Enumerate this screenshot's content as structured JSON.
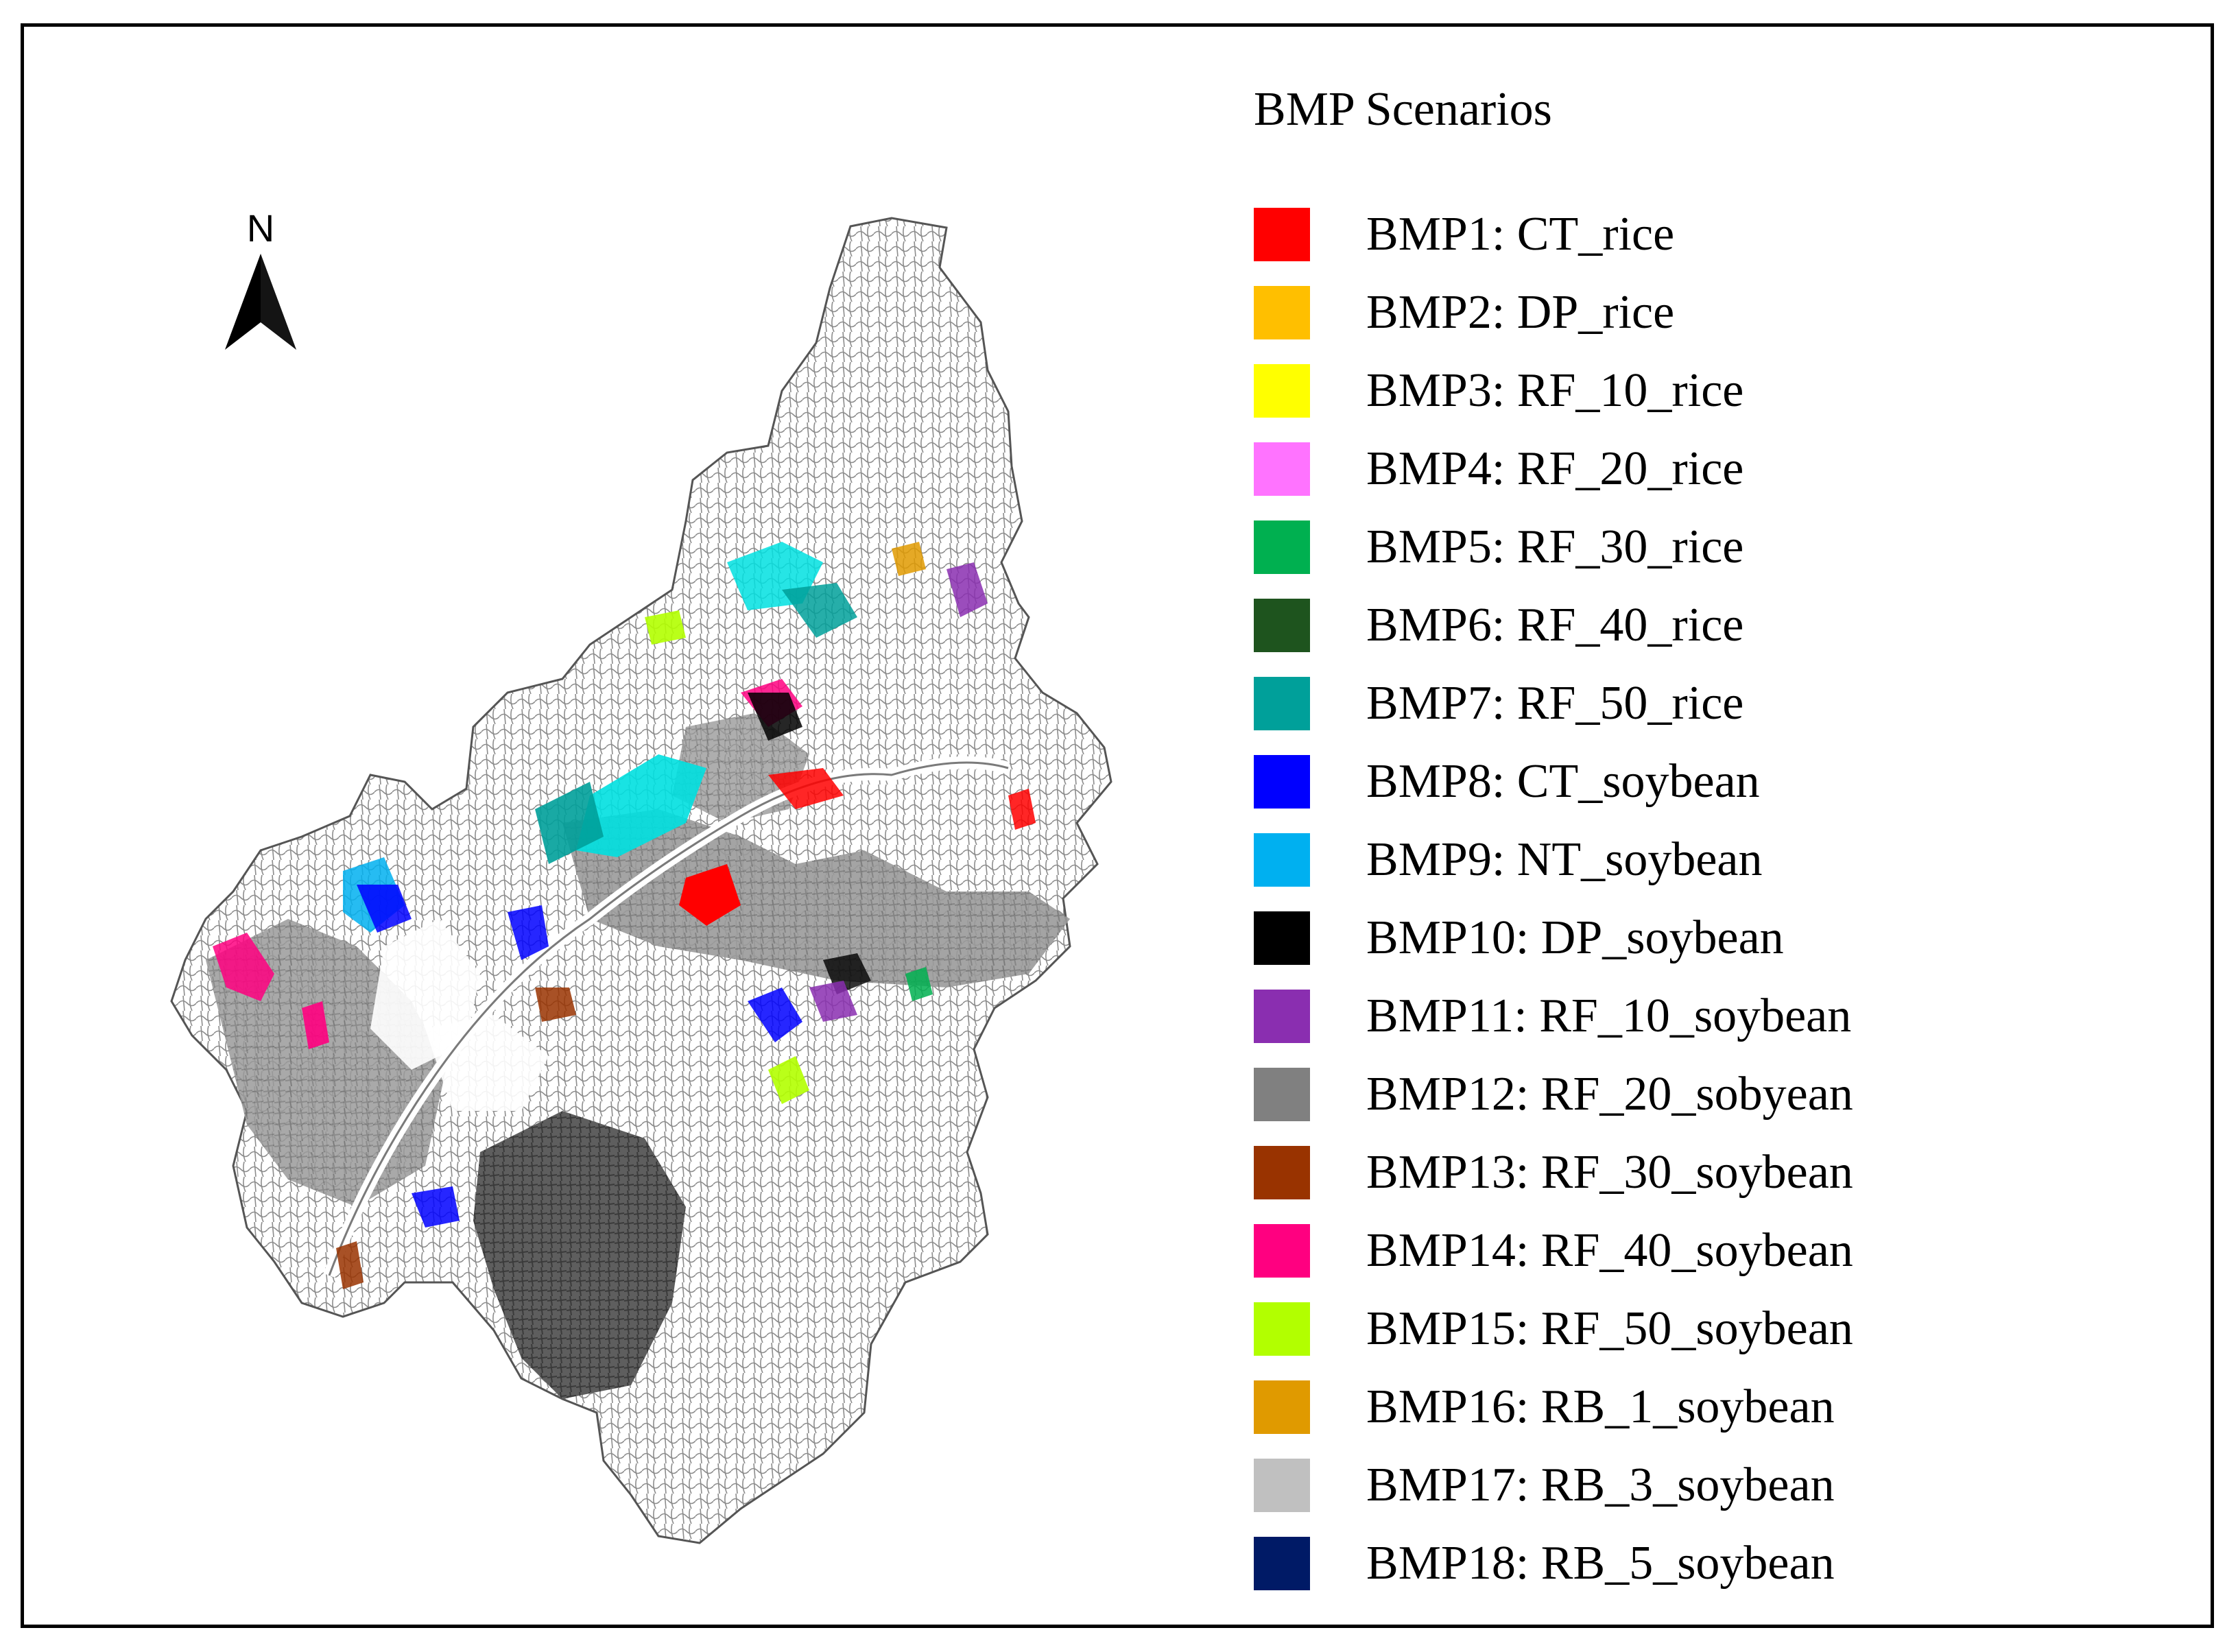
{
  "legend": {
    "title": "BMP Scenarios",
    "items": [
      {
        "label": "BMP1: CT_rice",
        "color": "#ff0000"
      },
      {
        "label": "BMP2: DP_rice",
        "color": "#ffbf00"
      },
      {
        "label": "BMP3: RF_10_rice",
        "color": "#ffff00"
      },
      {
        "label": "BMP4: RF_20_rice",
        "color": "#ff73ff"
      },
      {
        "label": "BMP5: RF_30_rice",
        "color": "#00b050"
      },
      {
        "label": "BMP6: RF_40_rice",
        "color": "#1e541e"
      },
      {
        "label": "BMP7: RF_50_rice",
        "color": "#00a09a"
      },
      {
        "label": "BMP8: CT_soybean",
        "color": "#0000ff"
      },
      {
        "label": "BMP9: NT_soybean",
        "color": "#00b0f0"
      },
      {
        "label": "BMP10: DP_soybean",
        "color": "#000000"
      },
      {
        "label": "BMP11: RF_10_soybean",
        "color": "#8a2eb0"
      },
      {
        "label": "BMP12: RF_20_sobyean",
        "color": "#808080"
      },
      {
        "label": "BMP13: RF_30_soybean",
        "color": "#993300"
      },
      {
        "label": "BMP14: RF_40_soybean",
        "color": "#ff0080"
      },
      {
        "label": "BMP15: RF_50_soybean",
        "color": "#b2ff00"
      },
      {
        "label": "BMP16: RB_1_soybean",
        "color": "#e09a00"
      },
      {
        "label": "BMP17: RB_3_soybean",
        "color": "#c0c0c0"
      },
      {
        "label": "BMP18: RB_5_soybean",
        "color": "#001a66"
      }
    ]
  },
  "north_arrow": {
    "label": "N"
  }
}
